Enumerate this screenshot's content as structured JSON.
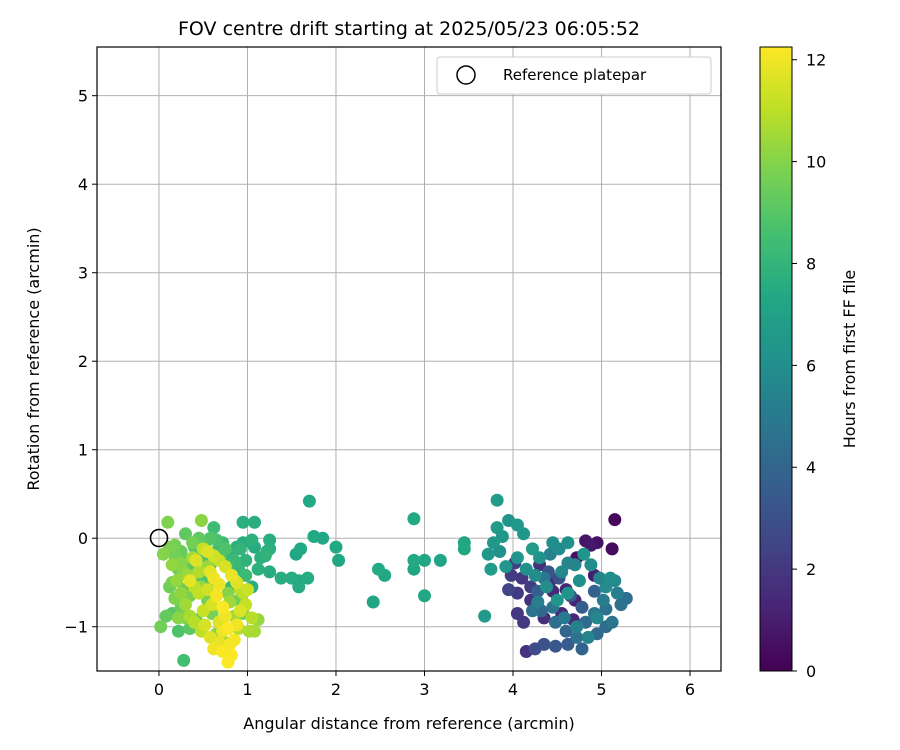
{
  "chart_data": {
    "type": "scatter",
    "title": "FOV centre drift starting at 2025/05/23 06:05:52",
    "xlabel": "Angular distance from reference (arcmin)",
    "ylabel": "Rotation from reference (arcmin)",
    "xlim": [
      -0.7,
      6.35
    ],
    "ylim": [
      -1.5,
      5.55
    ],
    "xticks": [
      "0",
      "1",
      "2",
      "3",
      "4",
      "5",
      "6"
    ],
    "yticks": [
      "−1",
      "0",
      "1",
      "2",
      "3",
      "4",
      "5"
    ],
    "grid": true,
    "legend": {
      "placement": "top-right",
      "label": "Reference platepar"
    },
    "reference_point": {
      "x": 0,
      "y": 0
    },
    "colorbar": {
      "label": "Hours from first FF file",
      "range": [
        0,
        12.25
      ],
      "ticks": [
        "0",
        "2",
        "4",
        "6",
        "8",
        "10",
        "12"
      ],
      "colormap": "viridis"
    },
    "points": [
      [
        5.15,
        0.21,
        0.2
      ],
      [
        5.12,
        -0.12,
        0.4
      ],
      [
        4.95,
        -0.05,
        0.6
      ],
      [
        4.88,
        -0.08,
        0.8
      ],
      [
        4.92,
        -0.42,
        1.0
      ],
      [
        4.72,
        -0.22,
        0.5
      ],
      [
        4.82,
        -0.03,
        0.7
      ],
      [
        4.7,
        -0.7,
        1.2
      ],
      [
        4.55,
        -0.85,
        1.4
      ],
      [
        4.45,
        -0.6,
        1.5
      ],
      [
        4.35,
        -0.9,
        1.6
      ],
      [
        4.2,
        -0.7,
        1.8
      ],
      [
        4.05,
        -0.85,
        2.0
      ],
      [
        4.1,
        -0.45,
        1.9
      ],
      [
        4.3,
        -0.3,
        1.7
      ],
      [
        4.42,
        -0.48,
        1.6
      ],
      [
        4.6,
        -0.58,
        1.3
      ],
      [
        4.68,
        -0.92,
        1.4
      ],
      [
        4.12,
        -0.95,
        2.0
      ],
      [
        4.05,
        -0.62,
        2.1
      ],
      [
        3.98,
        -0.42,
        2.2
      ],
      [
        4.2,
        -0.55,
        2.2
      ],
      [
        3.95,
        -0.58,
        2.5
      ],
      [
        4.02,
        -0.28,
        2.3
      ],
      [
        4.15,
        -1.28,
        1.8
      ],
      [
        4.25,
        -1.25,
        2.8
      ],
      [
        4.35,
        -1.2,
        3.1
      ],
      [
        4.48,
        -1.22,
        3.3
      ],
      [
        4.62,
        -1.2,
        3.5
      ],
      [
        4.78,
        -1.25,
        3.9
      ],
      [
        4.95,
        -1.08,
        4.2
      ],
      [
        5.05,
        -1.0,
        4.3
      ],
      [
        5.12,
        -0.95,
        4.8
      ],
      [
        5.05,
        -0.8,
        4.6
      ],
      [
        5.22,
        -0.75,
        4.5
      ],
      [
        5.18,
        -0.62,
        5.2
      ],
      [
        5.28,
        -0.68,
        4.4
      ],
      [
        4.92,
        -0.6,
        3.8
      ],
      [
        4.78,
        -0.78,
        3.6
      ],
      [
        4.65,
        -0.65,
        3.4
      ],
      [
        4.52,
        -0.45,
        3.0
      ],
      [
        4.4,
        -0.38,
        3.2
      ],
      [
        4.28,
        -0.6,
        3.7
      ],
      [
        4.32,
        -0.82,
        4.1
      ],
      [
        4.45,
        -0.78,
        4.7
      ],
      [
        4.58,
        -0.9,
        5.0
      ],
      [
        4.72,
        -1.0,
        5.3
      ],
      [
        4.85,
        -1.12,
        5.5
      ],
      [
        4.95,
        -0.9,
        5.6
      ],
      [
        5.05,
        -0.55,
        5.8
      ],
      [
        5.1,
        -0.45,
        6.0
      ],
      [
        5.15,
        -0.48,
        5.7
      ],
      [
        4.88,
        -0.3,
        5.9
      ],
      [
        4.75,
        -0.48,
        6.1
      ],
      [
        4.62,
        -0.62,
        6.2
      ],
      [
        4.5,
        -0.7,
        6.3
      ],
      [
        4.38,
        -0.55,
        5.9
      ],
      [
        4.25,
        -0.42,
        6.0
      ],
      [
        4.15,
        -0.35,
        6.1
      ],
      [
        4.05,
        -0.22,
        6.3
      ],
      [
        3.92,
        -0.32,
        6.4
      ],
      [
        3.85,
        -0.15,
        6.2
      ],
      [
        3.78,
        -0.05,
        6.5
      ],
      [
        3.82,
        0.12,
        6.6
      ],
      [
        3.88,
        0.02,
        6.4
      ],
      [
        3.82,
        0.43,
        6.7
      ],
      [
        3.95,
        0.2,
        6.3
      ],
      [
        4.05,
        0.15,
        6.5
      ],
      [
        4.12,
        0.05,
        6.4
      ],
      [
        4.22,
        -0.12,
        6.6
      ],
      [
        4.3,
        -0.22,
        6.2
      ],
      [
        4.45,
        -0.05,
        6.0
      ],
      [
        4.52,
        -0.12,
        5.8
      ],
      [
        4.62,
        -0.05,
        6.1
      ],
      [
        4.7,
        -0.3,
        5.6
      ],
      [
        4.8,
        -0.18,
        6.3
      ],
      [
        3.68,
        -0.88,
        6.6
      ],
      [
        3.72,
        -0.18,
        6.5
      ],
      [
        3.75,
        -0.35,
        6.7
      ],
      [
        4.62,
        -0.28,
        5.5
      ],
      [
        4.55,
        -0.38,
        5.7
      ],
      [
        4.42,
        -0.18,
        5.4
      ],
      [
        4.35,
        -0.45,
        4.9
      ],
      [
        4.28,
        -0.72,
        5.2
      ],
      [
        4.22,
        -0.82,
        4.6
      ],
      [
        4.48,
        -0.95,
        4.4
      ],
      [
        4.6,
        -1.05,
        4.0
      ],
      [
        4.72,
        -1.12,
        4.6
      ],
      [
        4.82,
        -0.95,
        4.2
      ],
      [
        4.92,
        -0.85,
        4.9
      ],
      [
        5.02,
        -0.7,
        5.1
      ],
      [
        4.98,
        -0.45,
        5.4
      ],
      [
        3.45,
        -0.05,
        7.2
      ],
      [
        3.45,
        -0.12,
        7.3
      ],
      [
        3.18,
        -0.25,
        7.2
      ],
      [
        3.0,
        -0.25,
        7.3
      ],
      [
        2.88,
        -0.25,
        7.4
      ],
      [
        2.88,
        -0.35,
        7.2
      ],
      [
        2.88,
        0.22,
        7.4
      ],
      [
        3.0,
        -0.65,
        7.3
      ],
      [
        2.55,
        -0.42,
        7.3
      ],
      [
        2.48,
        -0.35,
        7.4
      ],
      [
        2.42,
        -0.72,
        7.2
      ],
      [
        2.03,
        -0.25,
        7.3
      ],
      [
        2.0,
        -0.1,
        7.4
      ],
      [
        1.85,
        0.0,
        7.3
      ],
      [
        1.75,
        0.02,
        7.4
      ],
      [
        1.7,
        0.42,
        7.4
      ],
      [
        1.68,
        -0.45,
        7.5
      ],
      [
        1.6,
        -0.12,
        7.4
      ],
      [
        1.55,
        -0.18,
        7.3
      ],
      [
        1.5,
        -0.45,
        7.5
      ],
      [
        1.58,
        -0.48,
        7.4
      ],
      [
        1.58,
        -0.55,
        7.5
      ],
      [
        1.38,
        -0.45,
        7.6
      ],
      [
        1.25,
        -0.12,
        7.7
      ],
      [
        1.25,
        -0.02,
        7.6
      ],
      [
        1.22,
        -0.15,
        7.8
      ],
      [
        1.2,
        -0.2,
        7.9
      ],
      [
        1.15,
        -0.22,
        7.7
      ],
      [
        1.12,
        -0.35,
        7.8
      ],
      [
        1.25,
        -0.38,
        7.6
      ],
      [
        1.08,
        -0.1,
        7.5
      ],
      [
        1.08,
        0.18,
        7.6
      ],
      [
        0.95,
        0.18,
        7.7
      ],
      [
        1.05,
        -0.02,
        7.8
      ],
      [
        1.05,
        -0.55,
        7.7
      ],
      [
        0.95,
        -0.05,
        7.6
      ],
      [
        0.98,
        -0.25,
        7.9
      ],
      [
        0.88,
        -0.1,
        7.8
      ],
      [
        0.82,
        -0.18,
        8.0
      ],
      [
        0.9,
        -0.35,
        8.1
      ],
      [
        0.82,
        -0.55,
        8.2
      ],
      [
        0.78,
        -0.3,
        8.4
      ],
      [
        0.72,
        -0.05,
        8.3
      ],
      [
        0.65,
        -0.15,
        8.5
      ],
      [
        0.62,
        0.12,
        8.4
      ],
      [
        0.58,
        -0.3,
        8.6
      ],
      [
        0.55,
        -0.5,
        8.7
      ],
      [
        0.5,
        -0.2,
        8.8
      ],
      [
        0.45,
        -0.42,
        8.9
      ],
      [
        0.4,
        -0.1,
        9.0
      ],
      [
        0.35,
        -0.32,
        9.1
      ],
      [
        0.3,
        0.05,
        9.2
      ],
      [
        0.28,
        -0.58,
        9.3
      ],
      [
        0.25,
        -0.78,
        9.4
      ],
      [
        0.22,
        -0.35,
        9.5
      ],
      [
        0.18,
        -0.2,
        9.6
      ],
      [
        0.15,
        -0.5,
        9.7
      ],
      [
        0.12,
        -0.1,
        9.8
      ],
      [
        0.1,
        0.18,
        9.9
      ],
      [
        0.05,
        -0.18,
        10.0
      ],
      [
        0.02,
        -1.0,
        9.6
      ],
      [
        0.08,
        -0.88,
        9.3
      ],
      [
        0.15,
        -0.85,
        9.0
      ],
      [
        0.22,
        -1.05,
        8.8
      ],
      [
        0.28,
        -1.38,
        8.5
      ],
      [
        0.35,
        -1.02,
        9.1
      ],
      [
        0.42,
        -0.92,
        9.4
      ],
      [
        0.48,
        0.2,
        10.1
      ],
      [
        0.55,
        -0.7,
        9.7
      ],
      [
        0.6,
        -0.85,
        9.8
      ],
      [
        0.65,
        -1.08,
        10.0
      ],
      [
        0.7,
        -0.95,
        10.2
      ],
      [
        0.75,
        -1.18,
        10.4
      ],
      [
        0.8,
        -0.72,
        10.5
      ],
      [
        0.85,
        -0.88,
        10.6
      ],
      [
        0.9,
        -1.02,
        10.8
      ],
      [
        0.95,
        -0.62,
        10.9
      ],
      [
        1.02,
        -1.05,
        10.7
      ],
      [
        1.05,
        -0.9,
        10.9
      ],
      [
        0.92,
        -0.58,
        11.0
      ],
      [
        0.5,
        -0.12,
        11.2
      ],
      [
        0.55,
        -0.15,
        11.6
      ],
      [
        0.58,
        -0.38,
        11.8
      ],
      [
        0.62,
        -0.45,
        12.0
      ],
      [
        0.65,
        -0.65,
        12.1
      ],
      [
        0.68,
        -0.52,
        11.9
      ],
      [
        0.72,
        -0.78,
        12.2
      ],
      [
        0.75,
        -0.88,
        12.0
      ],
      [
        0.78,
        -1.02,
        12.2
      ],
      [
        0.8,
        -1.2,
        12.1
      ],
      [
        0.82,
        -1.32,
        12.2
      ],
      [
        0.78,
        -1.4,
        12.2
      ],
      [
        0.72,
        -1.05,
        11.9
      ],
      [
        0.68,
        -0.95,
        11.7
      ],
      [
        0.6,
        -0.75,
        11.5
      ],
      [
        0.55,
        -0.58,
        11.4
      ],
      [
        0.5,
        -0.82,
        11.3
      ],
      [
        0.45,
        -0.62,
        11.1
      ],
      [
        0.4,
        -0.55,
        11.0
      ],
      [
        0.45,
        -0.38,
        10.8
      ],
      [
        0.38,
        -0.22,
        10.6
      ],
      [
        0.32,
        -0.42,
        10.4
      ],
      [
        0.25,
        -0.62,
        10.2
      ],
      [
        0.2,
        -0.48,
        10.3
      ],
      [
        0.3,
        -0.75,
        10.5
      ],
      [
        0.35,
        -0.88,
        10.7
      ],
      [
        0.4,
        -0.95,
        10.9
      ],
      [
        0.48,
        -1.05,
        11.0
      ],
      [
        0.52,
        -0.98,
        11.5
      ],
      [
        0.58,
        -1.12,
        11.7
      ],
      [
        0.62,
        -1.25,
        12.0
      ],
      [
        0.68,
        -1.18,
        11.8
      ],
      [
        0.72,
        -1.28,
        12.2
      ],
      [
        0.85,
        -1.15,
        12.1
      ],
      [
        0.88,
        -0.98,
        12.0
      ],
      [
        0.92,
        -0.82,
        11.6
      ],
      [
        0.98,
        -0.75,
        11.2
      ],
      [
        1.0,
        -0.58,
        11.3
      ],
      [
        0.88,
        -0.5,
        11.7
      ],
      [
        0.82,
        -0.42,
        11.9
      ],
      [
        0.75,
        -0.32,
        11.5
      ],
      [
        0.68,
        -0.25,
        11.2
      ],
      [
        0.62,
        -0.2,
        11.4
      ],
      [
        0.42,
        -0.25,
        11.6
      ],
      [
        0.35,
        -0.48,
        11.8
      ],
      [
        0.28,
        -0.38,
        10.1
      ],
      [
        0.18,
        -0.68,
        9.9
      ],
      [
        0.12,
        -0.55,
        9.5
      ],
      [
        0.18,
        -0.08,
        9.7
      ],
      [
        0.25,
        -0.15,
        9.4
      ],
      [
        0.32,
        -0.25,
        9.3
      ],
      [
        0.38,
        -0.05,
        9.6
      ],
      [
        0.45,
        0.0,
        9.2
      ],
      [
        0.52,
        -0.08,
        9.0
      ],
      [
        0.58,
        0.0,
        8.9
      ],
      [
        0.65,
        -0.02,
        8.7
      ],
      [
        0.7,
        -0.18,
        8.6
      ],
      [
        0.75,
        -0.12,
        8.8
      ],
      [
        0.85,
        -0.25,
        8.2
      ],
      [
        0.92,
        -0.12,
        8.0
      ],
      [
        0.98,
        -0.42,
        8.3
      ],
      [
        0.9,
        -0.7,
        9.5
      ],
      [
        0.95,
        -0.85,
        9.8
      ],
      [
        1.12,
        -0.92,
        10.3
      ],
      [
        1.08,
        -1.05,
        10.6
      ],
      [
        0.78,
        -0.62,
        10.0
      ],
      [
        0.55,
        -0.32,
        10.4
      ],
      [
        0.48,
        -0.55,
        10.2
      ],
      [
        0.35,
        -0.65,
        9.8
      ],
      [
        0.3,
        -0.9,
        9.9
      ],
      [
        0.22,
        -0.9,
        10.1
      ],
      [
        0.15,
        -0.3,
        10.2
      ],
      [
        0.25,
        -0.28,
        10.0
      ]
    ]
  }
}
